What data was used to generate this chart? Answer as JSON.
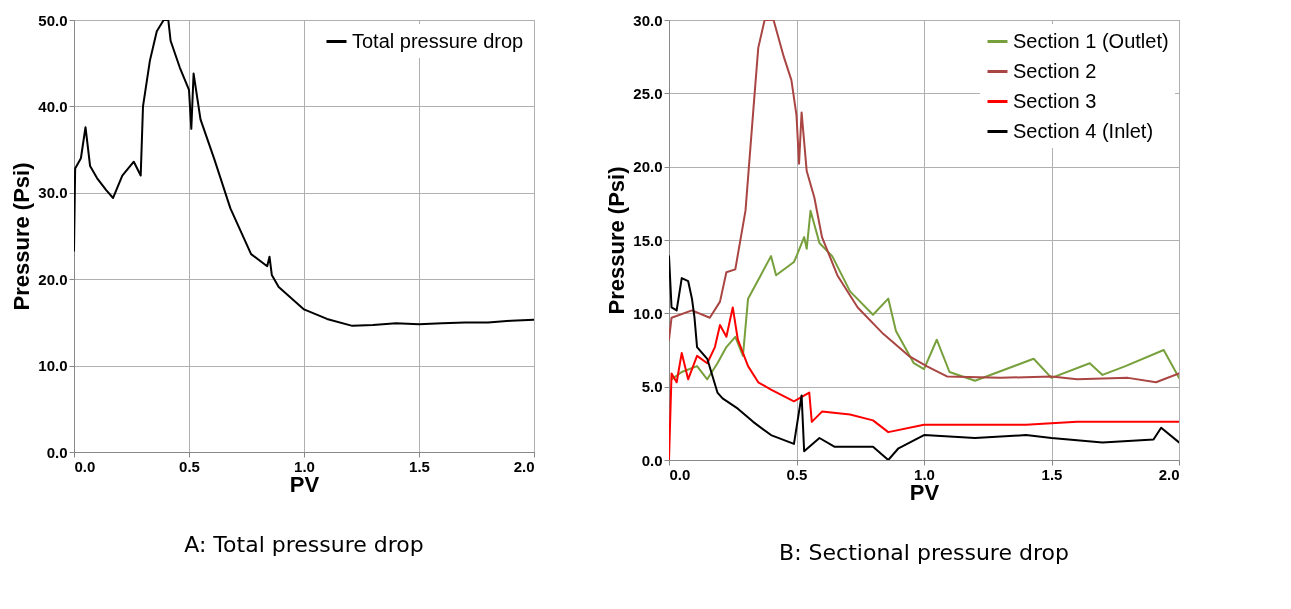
{
  "chart_data": [
    {
      "type": "line",
      "title": "A: Total pressure drop",
      "xlabel": "PV",
      "ylabel": "Pressure (Psi)",
      "xlim": [
        0,
        2
      ],
      "xticks": [
        {
          "value": 0,
          "label": "0.0"
        },
        {
          "value": 0.5,
          "label": "0.5"
        },
        {
          "value": 1,
          "label": "1.0"
        },
        {
          "value": 1.5,
          "label": "1.5"
        },
        {
          "value": 2,
          "label": "2.0"
        }
      ],
      "ylim": [
        0,
        50
      ],
      "yticks": [
        {
          "value": 0,
          "label": "0.0"
        },
        {
          "value": 10,
          "label": "10.0"
        },
        {
          "value": 20,
          "label": "20.0"
        },
        {
          "value": 30,
          "label": "30.0"
        },
        {
          "value": 40,
          "label": "40.0"
        },
        {
          "value": 50,
          "label": "50.0"
        }
      ],
      "grid": true,
      "legend": "top right",
      "marker": "none",
      "line_style": "solid",
      "series": [
        {
          "name": "Total pressure drop",
          "color": "#000000",
          "x": [
            0,
            0.005,
            0.03,
            0.05,
            0.07,
            0.1,
            0.14,
            0.17,
            0.21,
            0.26,
            0.29,
            0.3,
            0.33,
            0.36,
            0.39,
            0.41,
            0.42,
            0.46,
            0.5,
            0.51,
            0.52,
            0.55,
            0.61,
            0.68,
            0.77,
            0.84,
            0.85,
            0.86,
            0.89,
            1.0,
            1.1,
            1.21,
            1.3,
            1.4,
            1.5,
            1.6,
            1.7,
            1.8,
            1.9,
            2.0
          ],
          "values": [
            23.3,
            32.8,
            34.0,
            37.6,
            33.1,
            31.7,
            30.3,
            29.4,
            32.0,
            33.6,
            32.0,
            40.0,
            45.3,
            48.7,
            50.0,
            50.0,
            47.6,
            44.5,
            41.9,
            37.4,
            43.8,
            38.5,
            33.9,
            28.2,
            22.9,
            21.5,
            22.6,
            20.5,
            19.1,
            16.5,
            15.4,
            14.6,
            14.7,
            14.9,
            14.8,
            14.9,
            15.0,
            15.0,
            15.2,
            15.3
          ]
        }
      ]
    },
    {
      "type": "line",
      "title": "B: Sectional pressure drop",
      "xlabel": "PV",
      "ylabel": "Pressure (Psi)",
      "xlim": [
        0,
        2
      ],
      "xticks": [
        {
          "value": 0,
          "label": "0.0"
        },
        {
          "value": 0.5,
          "label": "0.5"
        },
        {
          "value": 1,
          "label": "1.0"
        },
        {
          "value": 1.5,
          "label": "1.5"
        },
        {
          "value": 2,
          "label": "2.0"
        }
      ],
      "ylim": [
        0,
        30
      ],
      "yticks": [
        {
          "value": 0,
          "label": "0.0"
        },
        {
          "value": 5,
          "label": "5.0"
        },
        {
          "value": 10,
          "label": "10.0"
        },
        {
          "value": 15,
          "label": "15.0"
        },
        {
          "value": 20,
          "label": "20.0"
        },
        {
          "value": 25,
          "label": "25.0"
        },
        {
          "value": 30,
          "label": "30.0"
        }
      ],
      "grid": true,
      "legend": "top right",
      "marker": "none",
      "line_style": "solid",
      "series": [
        {
          "name": "Section 1 (Outlet)",
          "color": "#77a03c",
          "x": [
            0.01,
            0.05,
            0.11,
            0.15,
            0.19,
            0.225,
            0.26,
            0.29,
            0.31,
            0.36,
            0.4,
            0.42,
            0.49,
            0.5,
            0.53,
            0.54,
            0.555,
            0.59,
            0.64,
            0.71,
            0.8,
            0.86,
            0.89,
            0.96,
            1.0,
            1.05,
            1.1,
            1.2,
            1.43,
            1.5,
            1.65,
            1.7,
            1.79,
            1.94,
            2.0
          ],
          "values": [
            5.5,
            6.0,
            6.4,
            5.5,
            6.6,
            7.7,
            8.4,
            7.1,
            11.0,
            12.6,
            13.9,
            12.6,
            13.5,
            13.9,
            15.2,
            14.4,
            17.0,
            14.8,
            13.9,
            11.5,
            9.9,
            11.0,
            8.8,
            6.6,
            6.2,
            8.2,
            6.0,
            5.4,
            6.9,
            5.6,
            6.6,
            5.8,
            6.4,
            7.5,
            5.6
          ]
        },
        {
          "name": "Section 2",
          "color": "#a94542",
          "x": [
            0,
            0.01,
            0.09,
            0.16,
            0.2,
            0.225,
            0.26,
            0.3,
            0.33,
            0.35,
            0.375,
            0.41,
            0.45,
            0.48,
            0.5,
            0.51,
            0.52,
            0.54,
            0.57,
            0.6,
            0.66,
            0.74,
            0.84,
            0.94,
            1.01,
            1.09,
            1.3,
            1.5,
            1.6,
            1.8,
            1.91,
            2.0
          ],
          "values": [
            8.2,
            9.7,
            10.2,
            9.7,
            10.8,
            12.8,
            13.0,
            17.0,
            23.7,
            28.1,
            30.0,
            30.0,
            27.5,
            25.9,
            23.5,
            20.2,
            23.7,
            19.7,
            17.9,
            15.2,
            12.6,
            10.4,
            8.6,
            7.1,
            6.4,
            5.7,
            5.6,
            5.7,
            5.5,
            5.6,
            5.3,
            5.9
          ]
        },
        {
          "name": "Section 3",
          "color": "#ff0000",
          "x": [
            0,
            0.01,
            0.03,
            0.05,
            0.075,
            0.11,
            0.15,
            0.18,
            0.2,
            0.225,
            0.25,
            0.27,
            0.31,
            0.35,
            0.4,
            0.49,
            0.55,
            0.56,
            0.6,
            0.71,
            0.8,
            0.86,
            1.0,
            1.2,
            1.4,
            1.6,
            1.8,
            2.0
          ],
          "values": [
            0,
            5.9,
            5.3,
            7.3,
            5.5,
            7.1,
            6.6,
            7.7,
            9.2,
            8.4,
            10.4,
            8.2,
            6.4,
            5.3,
            4.8,
            4.0,
            4.6,
            2.6,
            3.3,
            3.1,
            2.7,
            1.9,
            2.4,
            2.4,
            2.4,
            2.6,
            2.6,
            2.6
          ]
        },
        {
          "name": "Section 4 (Inlet)",
          "color": "#000000",
          "x": [
            0,
            0.01,
            0.03,
            0.05,
            0.075,
            0.09,
            0.1,
            0.11,
            0.15,
            0.19,
            0.21,
            0.27,
            0.33,
            0.4,
            0.49,
            0.52,
            0.53,
            0.59,
            0.65,
            0.8,
            0.86,
            0.9,
            1.0,
            1.2,
            1.4,
            1.5,
            1.7,
            1.9,
            1.93,
            2.0
          ],
          "values": [
            13.9,
            10.4,
            10.2,
            12.4,
            12.2,
            11.0,
            9.7,
            7.7,
            6.9,
            4.6,
            4.2,
            3.5,
            2.6,
            1.7,
            1.1,
            4.4,
            0.6,
            1.5,
            0.9,
            0.9,
            0.0,
            0.8,
            1.7,
            1.5,
            1.7,
            1.5,
            1.2,
            1.4,
            2.2,
            1.2
          ]
        }
      ]
    }
  ]
}
